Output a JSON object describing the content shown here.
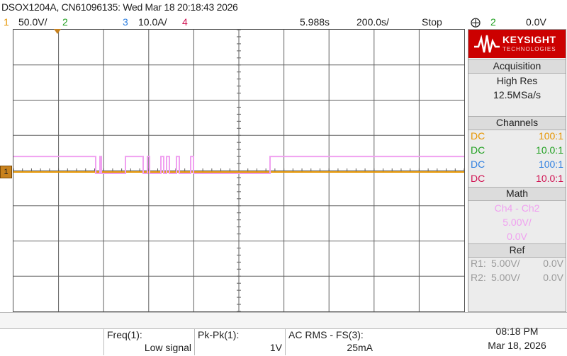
{
  "title": "DSOX1204A, CN61096135: Wed Mar 18 20:18:43 2026",
  "status": {
    "ch1_num": "1",
    "ch1_scale": "50.0V/",
    "ch2_num": "2",
    "ch3_num": "3",
    "ch3_scale": "10.0A/",
    "ch4_num": "4",
    "time_pos": "5.988s",
    "time_scale": "200.0s/",
    "run_state": "Stop",
    "trig_icon": "trigger-edge-icon",
    "trig_src": "2",
    "trig_level": "0.0V"
  },
  "logo": {
    "brand": "KEYSIGHT",
    "sub": "TECHNOLOGIES"
  },
  "acquisition": {
    "header": "Acquisition",
    "mode": "High Res",
    "rate": "12.5MSa/s"
  },
  "channels": {
    "header": "Channels",
    "rows": [
      {
        "coupling": "DC",
        "probe": "100:1",
        "color": "#e69500"
      },
      {
        "coupling": "DC",
        "probe": "10.0:1",
        "color": "#20a020"
      },
      {
        "coupling": "DC",
        "probe": "100:1",
        "color": "#3080e0"
      },
      {
        "coupling": "DC",
        "probe": "10.0:1",
        "color": "#d01050"
      }
    ]
  },
  "math": {
    "header": "Math",
    "expr": "Ch4 - Ch2",
    "scale": "5.00V/",
    "offset": "0.0V",
    "color": "#f0a0f0"
  },
  "ref": {
    "header": "Ref",
    "rows": [
      {
        "name": "R1:",
        "scale": "5.00V/",
        "offset": "0.0V"
      },
      {
        "name": "R2:",
        "scale": "5.00V/",
        "offset": "0.0V"
      }
    ]
  },
  "measurements": [
    {
      "name": "Freq(1):",
      "value": "Low signal"
    },
    {
      "name": "Pk-Pk(1):",
      "value": "1V"
    },
    {
      "name": "AC RMS - FS(3):",
      "value": "25mA"
    }
  ],
  "clock": {
    "time": "08:18 PM",
    "date": "Mar 18, 2026"
  },
  "ground_label": "1",
  "colors": {
    "ch1": "#e69500",
    "ch2": "#20a020",
    "ch3": "#3080e0",
    "ch4": "#d01050",
    "math": "#f0a0f0"
  },
  "trace": {
    "math_high_v": 2.2,
    "math_low_v": -0.2,
    "ch1_v": 0.0
  }
}
